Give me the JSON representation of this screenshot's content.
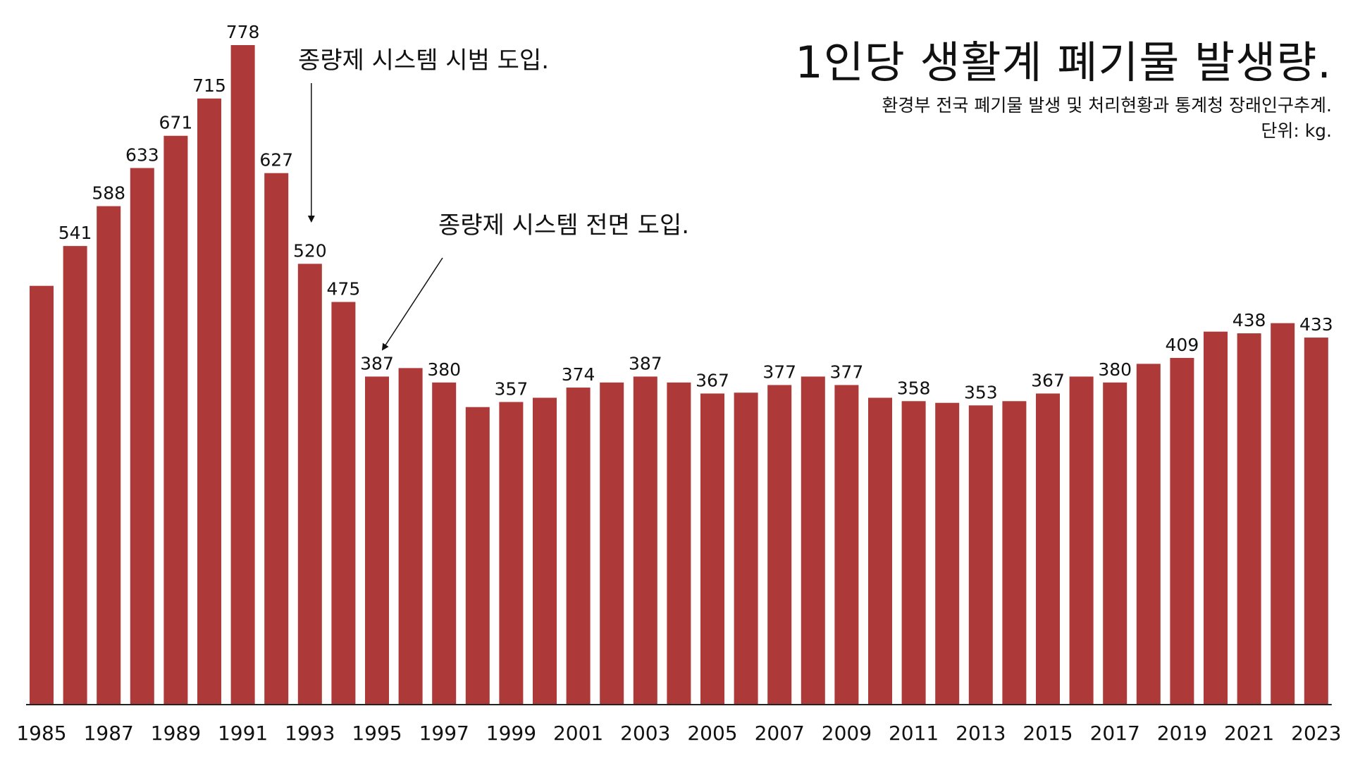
{
  "title": "1인당 생활계 폐기물 발생량.",
  "subtitle": "환경부 전국 폐기물 발생 및 처리현황과 통계청 장래인구추계.",
  "unit": "단위: kg.",
  "annotations": [
    {
      "text": "종량제 시스템 시범 도입.",
      "year": 1993
    },
    {
      "text": "종량제 시스템 전면 도입.",
      "year": 1995
    }
  ],
  "colors": {
    "bar": "#ad3a38",
    "axis": "#222222",
    "text": "#111111"
  },
  "chart_data": {
    "type": "bar",
    "title": "1인당 생활계 폐기물 발생량.",
    "subtitle": "환경부 전국 폐기물 발생 및 처리현황과 통계청 장래인구추계.",
    "unit": "단위: kg.",
    "xlabel": "",
    "ylabel": "",
    "ylim": [
      0,
      778
    ],
    "grid": false,
    "categories": [
      1985,
      1986,
      1987,
      1988,
      1989,
      1990,
      1991,
      1992,
      1993,
      1994,
      1995,
      1996,
      1997,
      1998,
      1999,
      2000,
      2001,
      2002,
      2003,
      2004,
      2005,
      2006,
      2007,
      2008,
      2009,
      2010,
      2011,
      2012,
      2013,
      2014,
      2015,
      2016,
      2017,
      2018,
      2019,
      2020,
      2021,
      2022,
      2023
    ],
    "tick_labels": [
      "1985",
      "1987",
      "1989",
      "1991",
      "1993",
      "1995",
      "1997",
      "1999",
      "2001",
      "2003",
      "2005",
      "2007",
      "2009",
      "2011",
      "2013",
      "2015",
      "2017",
      "2019",
      "2021",
      "2023"
    ],
    "values": [
      494,
      541,
      588,
      633,
      671,
      715,
      778,
      627,
      520,
      475,
      387,
      397,
      380,
      351,
      357,
      362,
      374,
      380,
      387,
      380,
      367,
      368,
      377,
      387,
      377,
      362,
      358,
      356,
      353,
      358,
      367,
      387,
      380,
      402,
      409,
      440,
      438,
      450,
      433
    ],
    "labels": [
      "",
      "541",
      "588",
      "633",
      "671",
      "715",
      "778",
      "627",
      "520",
      "475",
      "387",
      "",
      "380",
      "",
      "357",
      "",
      "374",
      "",
      "387",
      "",
      "367",
      "",
      "377",
      "",
      "377",
      "",
      "358",
      "",
      "353",
      "",
      "367",
      "",
      "380",
      "",
      "409",
      "",
      "438",
      "",
      "433"
    ]
  }
}
